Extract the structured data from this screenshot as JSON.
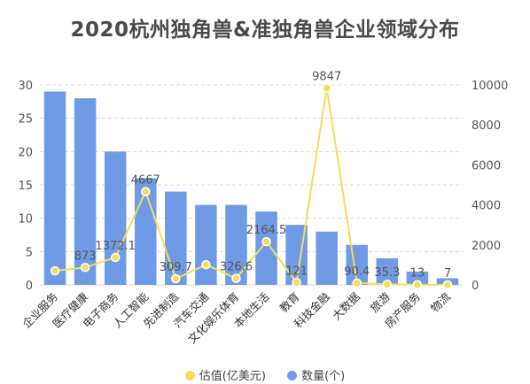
{
  "chart_data": {
    "type": "bar",
    "title": "2020杭州独角兽&准独角兽企业领域分布",
    "categories": [
      "企业服务",
      "医疗健康",
      "电子商务",
      "人工智能",
      "先进制造",
      "汽车交通",
      "文化娱乐体育",
      "本地生活",
      "教育",
      "科技金融",
      "大数据",
      "旅游",
      "房产服务",
      "物流"
    ],
    "series": [
      {
        "name": "数量(个)",
        "type": "bar",
        "axis": "left",
        "color": "#6f9be6",
        "values": [
          29,
          28,
          20,
          16,
          14,
          12,
          12,
          11,
          9,
          8,
          6,
          4,
          2,
          1
        ]
      },
      {
        "name": "估值(亿美元)",
        "type": "line",
        "axis": "right",
        "color": "#f5dc5a",
        "values": [
          701,
          873,
          1372.1,
          4667,
          309.7,
          1010,
          326.6,
          2164.5,
          121,
          9847,
          90.4,
          35.3,
          13,
          7
        ],
        "labels": [
          "",
          "873",
          "1372.1",
          "4667",
          "309.7",
          "",
          "326.6",
          "2164.5",
          "121",
          "9847",
          "90.4",
          "35.3",
          "13",
          "7"
        ]
      }
    ],
    "y_left": {
      "min": 0,
      "max": 30,
      "ticks": [
        0,
        5,
        10,
        15,
        20,
        25,
        30
      ]
    },
    "y_right": {
      "min": 0,
      "max": 10000,
      "ticks": [
        0,
        2000,
        4000,
        6000,
        8000,
        10000
      ]
    },
    "grid": true,
    "legend": {
      "position": "bottom",
      "items": [
        {
          "label": "估值(亿美元)",
          "color": "#f5dc5a"
        },
        {
          "label": "数量(个)",
          "color": "#6f9be6"
        }
      ]
    }
  }
}
